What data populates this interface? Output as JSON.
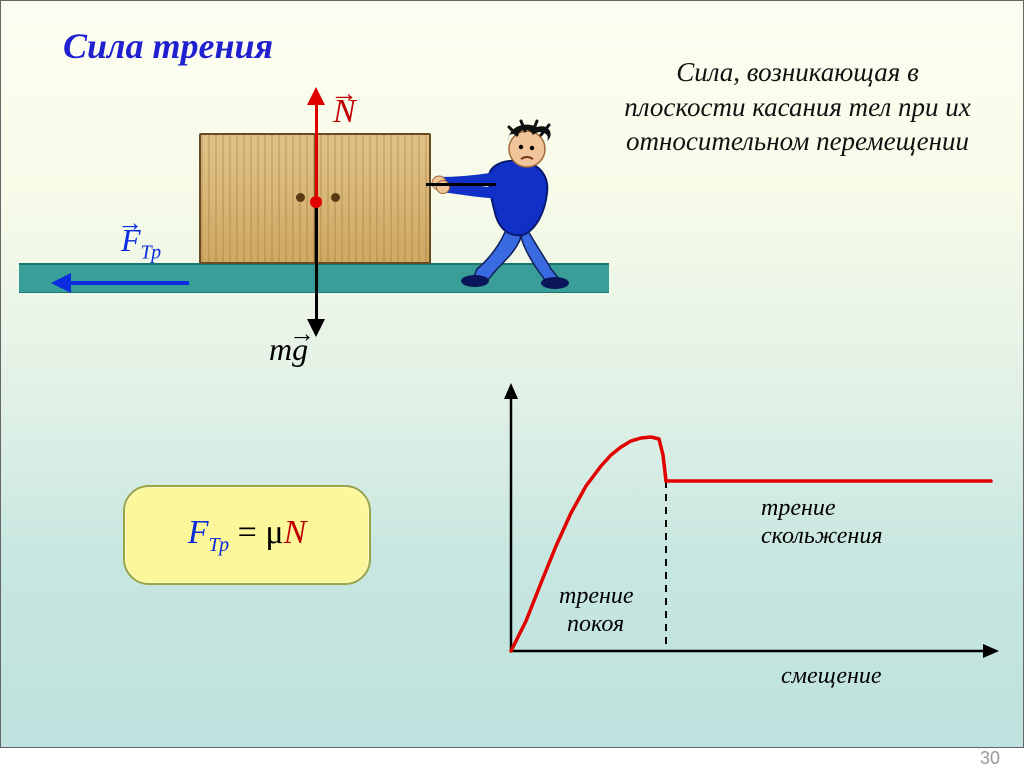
{
  "page_number": "30",
  "title": "Сила трения",
  "definition": "Сила, возникающая в плоскости касания тел при их относительном перемещении",
  "diagram": {
    "vector_N_label": "N",
    "vector_mg_label": "mg",
    "vector_Ftp_label_F": "F",
    "vector_Ftp_label_sub": "Тр",
    "colors": {
      "N": "#c00000",
      "mg": "#000000",
      "Ftp": "#0a2be0",
      "ground": "#3a9e98",
      "crate_fill": "#d9b878",
      "crate_border": "#6a4a20",
      "person_shirt": "#1030c8",
      "person_pants": "#3a6adf",
      "person_skin": "#f2c49a",
      "person_hair": "#101010"
    }
  },
  "formula": {
    "F": "F",
    "F_sub": "Тр",
    "equals": "=",
    "mu": "μ",
    "N": "N",
    "box_bg": "#fbf79a",
    "box_border": "#9aa54a"
  },
  "graph": {
    "type": "line",
    "curve_color": "#e00000",
    "axis_color": "#000000",
    "dash_color": "#000000",
    "line_width": 3.5,
    "x_axis_label": "смещение",
    "label_static": "трение покоя",
    "label_kinetic": "трение скольжения",
    "xlim": [
      0,
      480
    ],
    "ylim": [
      0,
      220
    ],
    "curve_points": [
      [
        0,
        0
      ],
      [
        15,
        30
      ],
      [
        30,
        68
      ],
      [
        45,
        105
      ],
      [
        60,
        138
      ],
      [
        75,
        165
      ],
      [
        90,
        185
      ],
      [
        100,
        196
      ],
      [
        110,
        204
      ],
      [
        120,
        210
      ],
      [
        130,
        213
      ],
      [
        140,
        214
      ],
      [
        148,
        212
      ],
      [
        152,
        196
      ],
      [
        155,
        170
      ],
      [
        155,
        170
      ]
    ],
    "kinetic_y": 170,
    "kinetic_x_start": 155,
    "kinetic_x_end": 480,
    "dash_x": 155,
    "label_fontsize": 24
  }
}
